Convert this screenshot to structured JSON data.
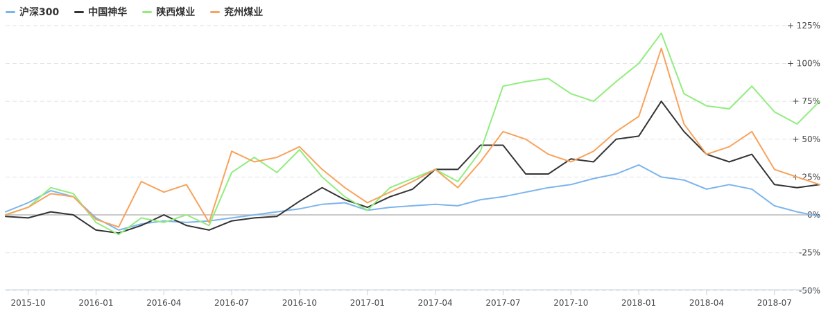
{
  "chart_data": {
    "type": "line",
    "title": "",
    "xlabel": "",
    "ylabel": "",
    "ylim": [
      -50,
      130
    ],
    "grid": true,
    "legend_position": "top-left",
    "y_ticks": [
      {
        "value": 125,
        "label": "+ 125%"
      },
      {
        "value": 100,
        "label": "+ 100%"
      },
      {
        "value": 75,
        "label": "+ 75%"
      },
      {
        "value": 50,
        "label": "+ 50%"
      },
      {
        "value": 25,
        "label": "+ 25%"
      },
      {
        "value": 0,
        "label": "0%"
      },
      {
        "value": -25,
        "label": "-25%"
      },
      {
        "value": -50,
        "label": "-50%"
      }
    ],
    "x_ticks": [
      "2015-10",
      "2016-01",
      "2016-04",
      "2016-07",
      "2016-10",
      "2017-01",
      "2017-04",
      "2017-07",
      "2017-10",
      "2018-01",
      "2018-04",
      "2018-07"
    ],
    "x_range": [
      "2015-09",
      "2018-09"
    ],
    "x": [
      "2015-09",
      "2015-10",
      "2015-11",
      "2015-12",
      "2016-01",
      "2016-02",
      "2016-03",
      "2016-04",
      "2016-05",
      "2016-06",
      "2016-07",
      "2016-08",
      "2016-09",
      "2016-10",
      "2016-11",
      "2016-12",
      "2017-01",
      "2017-02",
      "2017-03",
      "2017-04",
      "2017-05",
      "2017-06",
      "2017-07",
      "2017-08",
      "2017-09",
      "2017-10",
      "2017-11",
      "2017-12",
      "2018-01",
      "2018-02",
      "2018-03",
      "2018-04",
      "2018-05",
      "2018-06",
      "2018-07",
      "2018-08",
      "2018-09"
    ],
    "series": [
      {
        "name": "沪深300",
        "color": "#7cb5ec",
        "values": [
          2,
          8,
          16,
          12,
          -2,
          -10,
          -6,
          -4,
          -5,
          -4,
          -2,
          0,
          2,
          4,
          7,
          8,
          3,
          5,
          6,
          7,
          6,
          10,
          12,
          15,
          18,
          20,
          24,
          27,
          33,
          25,
          23,
          17,
          20,
          17,
          6,
          2,
          -1
        ]
      },
      {
        "name": "中国神华",
        "color": "#333333",
        "values": [
          -1,
          -2,
          2,
          0,
          -10,
          -12,
          -7,
          0,
          -7,
          -10,
          -4,
          -2,
          -1,
          9,
          18,
          10,
          5,
          12,
          17,
          30,
          30,
          46,
          46,
          27,
          27,
          37,
          35,
          50,
          52,
          75,
          55,
          40,
          35,
          40,
          20,
          18,
          20
        ]
      },
      {
        "name": "陕西煤业",
        "color": "#90ed7d",
        "values": [
          0,
          5,
          18,
          14,
          -5,
          -13,
          -2,
          -5,
          0,
          -7,
          28,
          38,
          28,
          43,
          25,
          12,
          3,
          18,
          24,
          30,
          22,
          42,
          85,
          88,
          90,
          80,
          75,
          88,
          100,
          120,
          80,
          72,
          70,
          85,
          68,
          60,
          75
        ]
      },
      {
        "name": "兖州煤业",
        "color": "#f7a35c",
        "values": [
          0,
          5,
          14,
          12,
          -3,
          -8,
          22,
          15,
          20,
          -5,
          42,
          35,
          38,
          45,
          30,
          18,
          8,
          15,
          22,
          30,
          18,
          35,
          55,
          50,
          40,
          35,
          42,
          55,
          65,
          110,
          60,
          40,
          45,
          55,
          30,
          25,
          20
        ]
      }
    ]
  }
}
